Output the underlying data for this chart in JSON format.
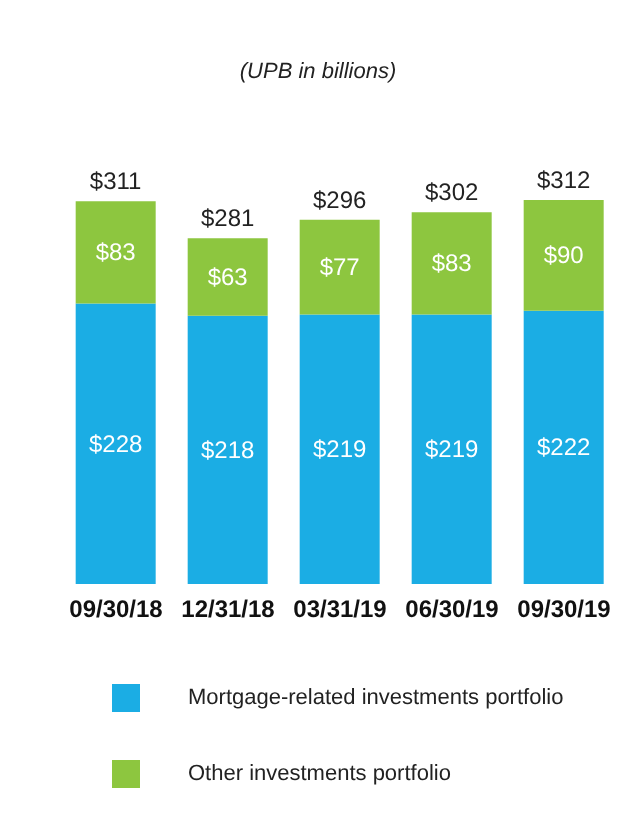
{
  "chart_data": {
    "type": "bar",
    "title": "(UPB in billions)",
    "categories": [
      "09/30/18",
      "12/31/18",
      "03/31/19",
      "06/30/19",
      "09/30/19"
    ],
    "stacked": true,
    "legend": "bottom",
    "series": [
      {
        "name": "Mortgage-related investments portfolio",
        "color": "#1badE4",
        "values": [
          228,
          218,
          219,
          219,
          222
        ],
        "value_labels": [
          "$228",
          "$218",
          "$219",
          "$219",
          "$222"
        ]
      },
      {
        "name": "Other investments portfolio",
        "color": "#8dc63f",
        "values": [
          83,
          63,
          77,
          83,
          90
        ],
        "value_labels": [
          "$83",
          "$63",
          "$77",
          "$83",
          "$90"
        ]
      }
    ],
    "totals": [
      "$311",
      "$281",
      "$296",
      "$302",
      "$312"
    ]
  }
}
